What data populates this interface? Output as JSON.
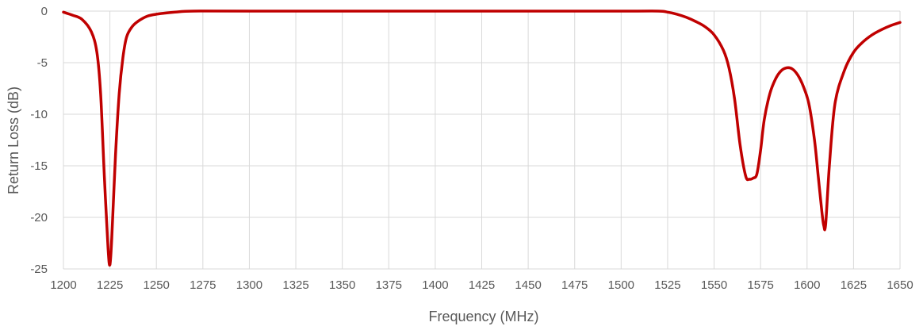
{
  "chart_data": {
    "type": "line",
    "xlabel": "Frequency (MHz)",
    "ylabel": "Return Loss (dB)",
    "xlim": [
      1200,
      1650
    ],
    "ylim": [
      -25,
      0
    ],
    "x_ticks": [
      "1200",
      "1225",
      "1250",
      "1275",
      "1300",
      "1325",
      "1350",
      "1375",
      "1400",
      "1425",
      "1450",
      "1475",
      "1500",
      "1525",
      "1550",
      "1575",
      "1600",
      "1625",
      "1650"
    ],
    "y_ticks": [
      "0",
      "-5",
      "-10",
      "-15",
      "-20",
      "-25"
    ],
    "grid": true,
    "series": [
      {
        "color": "#c00000",
        "x": [
          1200,
          1205,
          1210,
          1215,
          1218,
          1220,
          1222,
          1224,
          1225,
          1226,
          1228,
          1230,
          1232,
          1234,
          1237,
          1240,
          1245,
          1250,
          1260,
          1270,
          1300,
          1400,
          1500,
          1520,
          1525,
          1530,
          1535,
          1540,
          1545,
          1550,
          1555,
          1558,
          1561,
          1564,
          1567,
          1569,
          1571,
          1573,
          1575,
          1577,
          1580,
          1583,
          1586,
          1589,
          1592,
          1595,
          1598,
          1601,
          1604,
          1606,
          1608,
          1609,
          1610,
          1612,
          1615,
          1620,
          1625,
          1630,
          1635,
          1640,
          1645,
          1650
        ],
        "y": [
          -0.1,
          -0.4,
          -0.8,
          -2.0,
          -4.0,
          -8.0,
          -16.0,
          -23.0,
          -24.6,
          -22.0,
          -14.0,
          -8.0,
          -4.5,
          -2.5,
          -1.5,
          -1.0,
          -0.5,
          -0.3,
          -0.1,
          0,
          0,
          0,
          0,
          0,
          -0.1,
          -0.3,
          -0.6,
          -1.0,
          -1.5,
          -2.3,
          -3.8,
          -5.5,
          -8.5,
          -13.0,
          -16.0,
          -16.3,
          -16.2,
          -15.8,
          -13.5,
          -10.5,
          -8.0,
          -6.6,
          -5.8,
          -5.5,
          -5.6,
          -6.2,
          -7.3,
          -9.0,
          -12.5,
          -16.0,
          -19.5,
          -20.8,
          -20.7,
          -15.0,
          -9.0,
          -5.8,
          -4.0,
          -3.0,
          -2.3,
          -1.8,
          -1.4,
          -1.1
        ]
      }
    ]
  }
}
